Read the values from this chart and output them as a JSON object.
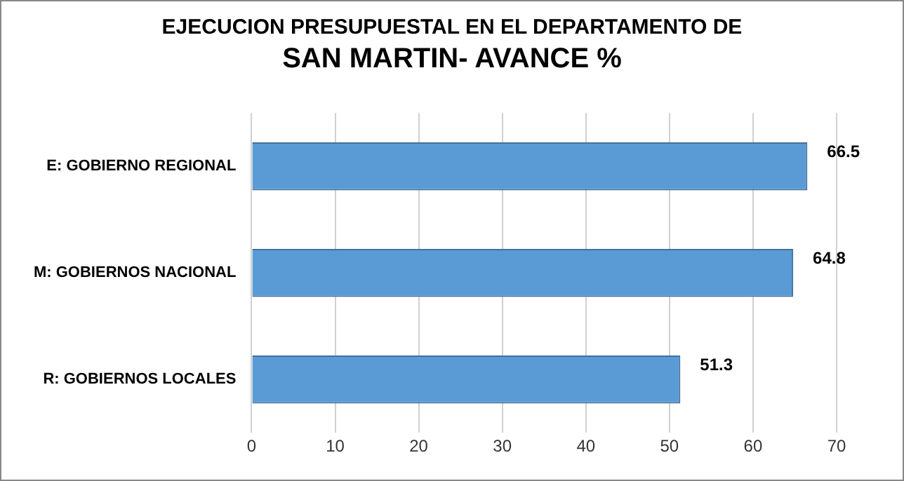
{
  "chart_data": {
    "type": "bar",
    "orientation": "horizontal",
    "title": "EJECUCION PRESUPUESTAL EN EL DEPARTAMENTO DE",
    "subtitle": "SAN MARTIN- AVANCE  %",
    "categories": [
      "E: GOBIERNO REGIONAL",
      "M: GOBIERNOS NACIONAL",
      "R: GOBIERNOS LOCALES"
    ],
    "values": [
      66.5,
      64.8,
      51.3
    ],
    "color": "#5b9bd5",
    "xlim": [
      0,
      70
    ],
    "xticks": [
      0,
      10,
      20,
      30,
      40,
      50,
      60,
      70
    ],
    "grid": "x",
    "data_labels": true
  }
}
